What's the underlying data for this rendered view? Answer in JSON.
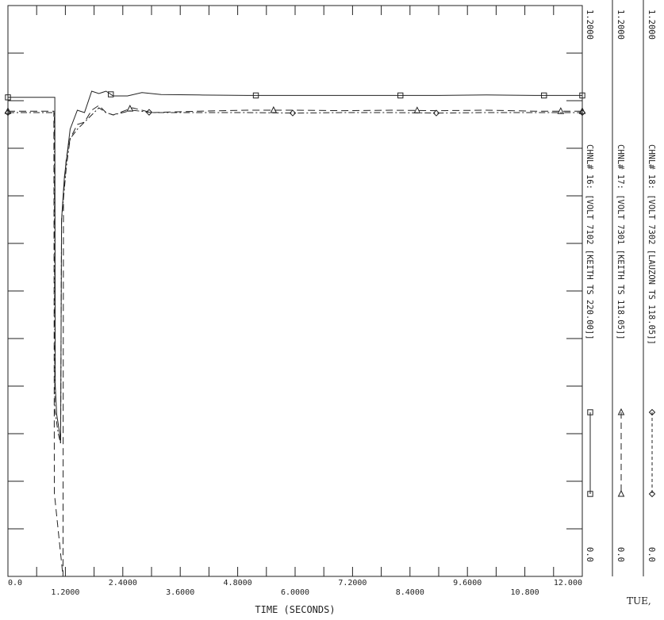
{
  "chart_data": {
    "type": "line",
    "xlabel": "TIME (SECONDS)",
    "xlim": [
      0,
      12.0
    ],
    "ylim": [
      0,
      1.2
    ],
    "grid": false,
    "x_tick_labels_low": [
      "0.0",
      "2.4000",
      "4.8000",
      "7.2000",
      "9.6000",
      "12.000"
    ],
    "x_tick_values_low": [
      0,
      2.4,
      4.8,
      7.2,
      9.6,
      12.0
    ],
    "x_tick_labels_high": [
      "1.2000",
      "3.6000",
      "6.0000",
      "8.4000",
      "10.800"
    ],
    "x_tick_values_high": [
      1.2,
      3.6,
      6.0,
      8.4,
      10.8
    ],
    "series": [
      {
        "style": "solid",
        "marker": "square",
        "x": [
          0,
          0.98,
          0.99,
          1.02,
          1.05,
          1.08,
          1.1,
          1.12,
          1.18,
          1.3,
          1.45,
          1.6,
          1.75,
          1.9,
          2.05,
          2.2,
          2.5,
          2.8,
          3.2,
          4.0,
          5.0,
          6.0,
          7.0,
          8.0,
          9.0,
          10.0,
          11.0,
          12.0
        ],
        "y": [
          1.007,
          1.007,
          0.4,
          0.34,
          0.32,
          0.3,
          0.28,
          0.75,
          0.84,
          0.94,
          0.98,
          0.975,
          1.02,
          1.015,
          1.02,
          1.01,
          1.01,
          1.017,
          1.013,
          1.012,
          1.011,
          1.011,
          1.011,
          1.011,
          1.011,
          1.012,
          1.011,
          1.011
        ],
        "marker_x": [
          0,
          2.15,
          5.18,
          8.2,
          11.2,
          12.0
        ]
      },
      {
        "style": "dashed",
        "marker": "triangle",
        "x": [
          0,
          0.96,
          0.97,
          1.15,
          1.16,
          1.22,
          1.3,
          1.45,
          1.6,
          1.75,
          1.9,
          2.05,
          2.2,
          2.6,
          3.0,
          4.0,
          5.0,
          6.0,
          7.0,
          8.0,
          9.0,
          10.0,
          11.0,
          12.0
        ],
        "y": [
          0.978,
          0.978,
          0.175,
          0.0,
          0.8,
          0.88,
          0.92,
          0.95,
          0.955,
          0.98,
          0.99,
          0.975,
          0.97,
          0.985,
          0.975,
          0.978,
          0.98,
          0.98,
          0.979,
          0.98,
          0.979,
          0.98,
          0.978,
          0.978
        ],
        "marker_x": [
          0,
          2.55,
          5.55,
          8.55,
          11.55,
          12.0
        ]
      },
      {
        "style": "dashdot",
        "marker": "diamond",
        "x": [
          0,
          0.97,
          0.98,
          1.05,
          1.1,
          1.12,
          1.22,
          1.3,
          1.45,
          1.6,
          1.75,
          1.9,
          2.05,
          2.2,
          2.6,
          3.0,
          4.0,
          5.0,
          6.0,
          7.0,
          8.0,
          9.0,
          10.0,
          11.0,
          12.0
        ],
        "y": [
          0.975,
          0.975,
          0.35,
          0.3,
          0.28,
          0.75,
          0.86,
          0.92,
          0.94,
          0.955,
          0.97,
          0.985,
          0.975,
          0.97,
          0.98,
          0.975,
          0.975,
          0.975,
          0.974,
          0.975,
          0.975,
          0.974,
          0.975,
          0.975,
          0.975
        ],
        "marker_x": [
          0,
          2.95,
          5.95,
          8.95,
          12.0
        ]
      }
    ],
    "channels": [
      {
        "ymax": "1.2000",
        "ymin": "0.0",
        "label": "CHNL# 16: [VOLT   7102 [KEITH TS     220.00]]",
        "marker": "square",
        "style": "solid"
      },
      {
        "ymax": "1.2000",
        "ymin": "0.0",
        "label": "CHNL# 17: [VOLT   7301 [KEITH TS     118.05]]",
        "marker": "triangle",
        "style": "dashed"
      },
      {
        "ymax": "1.2000",
        "ymin": "0.0",
        "label": "CHNL# 18: [VOLT   7302 [LAUZON TS    118.05]]",
        "marker": "diamond",
        "style": "dashdot"
      }
    ],
    "footer_text": "TUE,"
  }
}
